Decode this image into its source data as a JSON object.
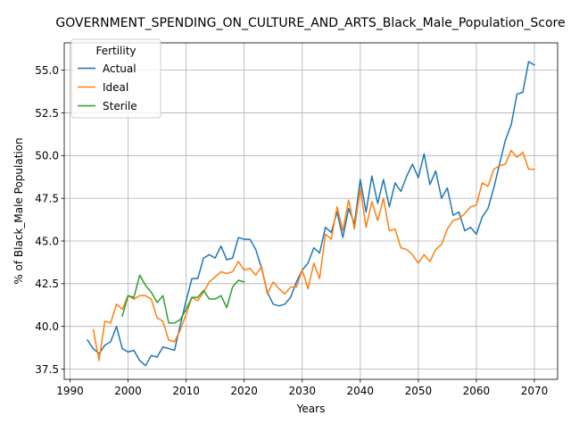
{
  "chart_data": {
    "type": "line",
    "title": "GOVERNMENT_SPENDING_ON_CULTURE_AND_ARTS_Black_Male_Population_Score",
    "xlabel": "Years",
    "ylabel": "% of Black_Male Population",
    "xlim": [
      1989,
      2074
    ],
    "ylim": [
      36.9,
      56.6
    ],
    "xticks": [
      1990,
      2000,
      2010,
      2020,
      2030,
      2040,
      2050,
      2060,
      2070
    ],
    "yticks": [
      37.5,
      40.0,
      42.5,
      45.0,
      47.5,
      50.0,
      52.5,
      55.0
    ],
    "grid": true,
    "legend": {
      "title": "Fertility",
      "position": "top-left"
    },
    "series": [
      {
        "name": "Actual",
        "color": "#1f77b4",
        "x": [
          1993,
          1994,
          1995,
          1996,
          1997,
          1998,
          1999,
          2000,
          2001,
          2002,
          2003,
          2004,
          2005,
          2006,
          2007,
          2008,
          2009,
          2010,
          2011,
          2012,
          2013,
          2014,
          2015,
          2016,
          2017,
          2018,
          2019,
          2020,
          2021,
          2022,
          2023,
          2024,
          2025,
          2026,
          2027,
          2028,
          2029,
          2030,
          2031,
          2032,
          2033,
          2034,
          2035,
          2036,
          2037,
          2038,
          2039,
          2040,
          2041,
          2042,
          2043,
          2044,
          2045,
          2046,
          2047,
          2048,
          2049,
          2050,
          2051,
          2052,
          2053,
          2054,
          2055,
          2056,
          2057,
          2058,
          2059,
          2060,
          2061,
          2062,
          2063,
          2064,
          2065,
          2066,
          2067,
          2068,
          2069,
          2070
        ],
        "values": [
          39.2,
          38.7,
          38.4,
          38.9,
          39.1,
          40.0,
          38.7,
          38.5,
          38.6,
          38.0,
          37.7,
          38.3,
          38.2,
          38.8,
          38.7,
          38.6,
          40.1,
          41.5,
          42.8,
          42.8,
          44.0,
          44.2,
          44.0,
          44.7,
          43.9,
          44.0,
          45.2,
          45.1,
          45.1,
          44.5,
          43.4,
          42.0,
          41.3,
          41.2,
          41.3,
          41.7,
          42.6,
          43.3,
          43.7,
          44.6,
          44.3,
          45.8,
          45.5,
          46.7,
          45.2,
          46.9,
          46.0,
          48.6,
          46.7,
          48.8,
          47.2,
          48.6,
          47.0,
          48.4,
          47.9,
          48.8,
          49.5,
          48.7,
          50.1,
          48.3,
          49.1,
          47.5,
          48.1,
          46.5,
          46.7,
          45.6,
          45.8,
          45.4,
          46.4,
          46.9,
          48.1,
          49.5,
          50.9,
          51.8,
          53.6,
          53.7,
          55.5,
          55.3
        ]
      },
      {
        "name": "Ideal",
        "color": "#ff7f0e",
        "x": [
          1994,
          1995,
          1996,
          1997,
          1998,
          1999,
          2000,
          2001,
          2002,
          2003,
          2004,
          2005,
          2006,
          2007,
          2008,
          2009,
          2010,
          2011,
          2012,
          2013,
          2014,
          2015,
          2016,
          2017,
          2018,
          2019,
          2020,
          2021,
          2022,
          2023,
          2024,
          2025,
          2026,
          2027,
          2028,
          2029,
          2030,
          2031,
          2032,
          2033,
          2034,
          2035,
          2036,
          2037,
          2038,
          2039,
          2040,
          2041,
          2042,
          2043,
          2044,
          2045,
          2046,
          2047,
          2048,
          2049,
          2050,
          2051,
          2052,
          2053,
          2054,
          2055,
          2056,
          2057,
          2058,
          2059,
          2060,
          2061,
          2062,
          2063,
          2064,
          2065,
          2066,
          2067,
          2068,
          2069,
          2070
        ],
        "values": [
          39.8,
          38.0,
          40.3,
          40.2,
          41.3,
          41.0,
          41.8,
          41.6,
          41.8,
          41.8,
          41.6,
          40.5,
          40.3,
          39.2,
          39.1,
          39.8,
          40.7,
          41.7,
          41.5,
          42.0,
          42.6,
          42.9,
          43.2,
          43.1,
          43.2,
          43.8,
          43.3,
          43.4,
          43.0,
          43.5,
          41.9,
          42.6,
          42.2,
          41.9,
          42.3,
          42.3,
          43.3,
          42.2,
          43.7,
          42.8,
          45.4,
          45.1,
          47.0,
          45.6,
          47.4,
          45.7,
          48.1,
          45.8,
          47.3,
          46.2,
          47.5,
          45.6,
          45.7,
          44.6,
          44.5,
          44.2,
          43.7,
          44.2,
          43.8,
          44.5,
          44.8,
          45.7,
          46.2,
          46.3,
          46.6,
          47.0,
          47.1,
          48.4,
          48.2,
          49.2,
          49.4,
          49.5,
          50.3,
          49.9,
          50.2,
          49.2,
          49.2
        ]
      },
      {
        "name": "Sterile",
        "color": "#2ca02c",
        "x": [
          1999,
          2000,
          2001,
          2002,
          2003,
          2004,
          2005,
          2006,
          2007,
          2008,
          2009,
          2010,
          2011,
          2012,
          2013,
          2014,
          2015,
          2016,
          2017,
          2018,
          2019,
          2020
        ],
        "values": [
          40.6,
          41.8,
          41.7,
          43.0,
          42.4,
          42.0,
          41.4,
          41.8,
          40.2,
          40.2,
          40.4,
          41.0,
          41.7,
          41.7,
          42.1,
          41.6,
          41.6,
          41.8,
          41.1,
          42.3,
          42.7,
          42.6
        ]
      }
    ]
  }
}
